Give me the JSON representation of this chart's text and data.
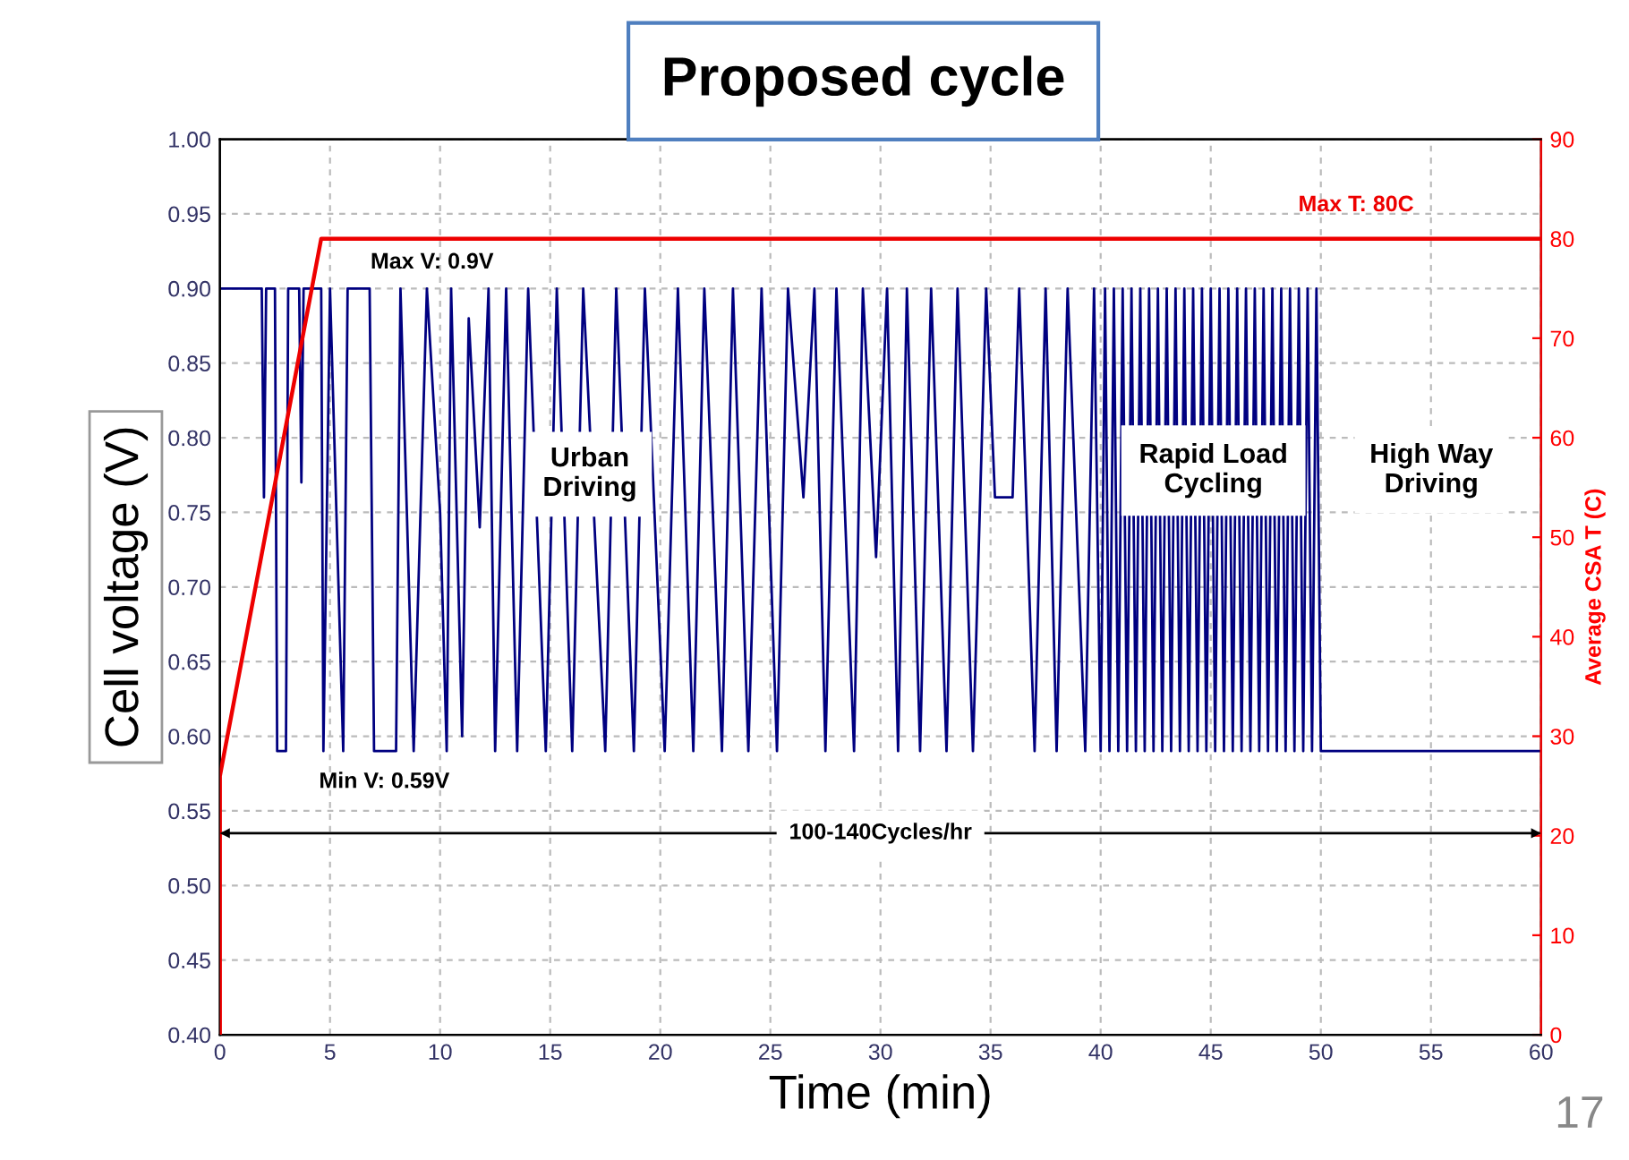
{
  "chart_data": {
    "type": "line",
    "title": "Proposed cycle",
    "xlabel": "Time (min)",
    "ylabel": "Cell voltage (V)",
    "y2label": "Average CSA T (C)",
    "xlim": [
      0,
      60
    ],
    "xticks": [
      0,
      5,
      10,
      15,
      20,
      25,
      30,
      35,
      40,
      45,
      50,
      55,
      60
    ],
    "ylim": [
      0.4,
      1.0
    ],
    "yticks": [
      {
        "value": 0.4,
        "label": "0.40"
      },
      {
        "value": 0.45,
        "label": "0.45"
      },
      {
        "value": 0.5,
        "label": "0.50"
      },
      {
        "value": 0.55,
        "label": "0.55"
      },
      {
        "value": 0.6,
        "label": "0.60"
      },
      {
        "value": 0.65,
        "label": "0.65"
      },
      {
        "value": 0.7,
        "label": "0.70"
      },
      {
        "value": 0.75,
        "label": "0.75"
      },
      {
        "value": 0.8,
        "label": "0.80"
      },
      {
        "value": 0.85,
        "label": "0.85"
      },
      {
        "value": 0.9,
        "label": "0.90"
      },
      {
        "value": 0.95,
        "label": "0.95"
      },
      {
        "value": 1.0,
        "label": "1.00"
      }
    ],
    "y2lim": [
      0,
      90
    ],
    "y2ticks": [
      0,
      10,
      20,
      30,
      40,
      50,
      60,
      70,
      80,
      90
    ],
    "grid": true,
    "ref_lines": [
      {
        "axis": "y",
        "value": 0.535,
        "label": "100-140Cycles/hr",
        "color": "#000000"
      }
    ],
    "marker": "none",
    "line_style": "solid",
    "series": [
      {
        "color": "#000080",
        "x": [
          0,
          1.9,
          2.0,
          2.1,
          2.5,
          2.6,
          3.0,
          3.1,
          3.6,
          3.7,
          3.8,
          4.6,
          4.7,
          5.0,
          5.6,
          5.8,
          6.8,
          7.0,
          8.0,
          8.2,
          8.8,
          9.4,
          10.0,
          10.3,
          10.5,
          11.0,
          11.3,
          11.8,
          12.2,
          12.5,
          13.0,
          13.5,
          14.0,
          14.8,
          15.3,
          16.0,
          16.5,
          17.5,
          18.0,
          18.8,
          19.3,
          20.2,
          20.8,
          21.5,
          22.0,
          22.8,
          23.3,
          24.0,
          24.6,
          25.3,
          25.8,
          26.5,
          27.0,
          27.5,
          28.0,
          28.8,
          29.2,
          29.8,
          30.3,
          30.8,
          31.2,
          31.8,
          32.3,
          33.0,
          33.5,
          34.2,
          34.8,
          35.2,
          36.0,
          36.3,
          37.0,
          37.5,
          38.0,
          38.5,
          39.3,
          39.7,
          40.0,
          40.2,
          40.4,
          40.6,
          40.8,
          41.0,
          41.2,
          41.4,
          41.6,
          41.8,
          42.0,
          42.2,
          42.4,
          42.6,
          42.8,
          43.0,
          43.2,
          43.4,
          43.6,
          43.8,
          44.0,
          44.2,
          44.4,
          44.6,
          44.8,
          45.0,
          45.2,
          45.4,
          45.6,
          45.8,
          46.0,
          46.2,
          46.4,
          46.6,
          46.8,
          47.0,
          47.2,
          47.4,
          47.6,
          47.8,
          48.0,
          48.2,
          48.4,
          48.6,
          48.8,
          49.0,
          49.2,
          49.4,
          49.6,
          49.8,
          50.0,
          60
        ],
        "values": [
          0.9,
          0.9,
          0.76,
          0.9,
          0.9,
          0.59,
          0.59,
          0.9,
          0.9,
          0.77,
          0.9,
          0.9,
          0.59,
          0.9,
          0.59,
          0.9,
          0.9,
          0.59,
          0.59,
          0.9,
          0.59,
          0.9,
          0.75,
          0.59,
          0.9,
          0.6,
          0.88,
          0.74,
          0.9,
          0.59,
          0.9,
          0.59,
          0.9,
          0.59,
          0.9,
          0.59,
          0.9,
          0.59,
          0.9,
          0.59,
          0.9,
          0.59,
          0.9,
          0.59,
          0.9,
          0.59,
          0.9,
          0.59,
          0.9,
          0.59,
          0.9,
          0.76,
          0.9,
          0.59,
          0.9,
          0.59,
          0.9,
          0.72,
          0.9,
          0.59,
          0.9,
          0.59,
          0.9,
          0.59,
          0.9,
          0.59,
          0.9,
          0.76,
          0.76,
          0.9,
          0.59,
          0.9,
          0.59,
          0.9,
          0.59,
          0.9,
          0.59,
          0.9,
          0.59,
          0.9,
          0.59,
          0.9,
          0.59,
          0.9,
          0.59,
          0.9,
          0.59,
          0.9,
          0.59,
          0.9,
          0.59,
          0.9,
          0.59,
          0.9,
          0.59,
          0.9,
          0.59,
          0.9,
          0.59,
          0.9,
          0.59,
          0.9,
          0.59,
          0.9,
          0.59,
          0.9,
          0.59,
          0.9,
          0.59,
          0.9,
          0.59,
          0.9,
          0.59,
          0.9,
          0.59,
          0.9,
          0.59,
          0.9,
          0.59,
          0.9,
          0.59,
          0.9,
          0.59,
          0.9,
          0.59,
          0.9,
          0.59,
          0.59
        ]
      },
      {
        "color": "#ee0000",
        "axis": "y2",
        "x": [
          0,
          0,
          4.6,
          60
        ],
        "values": [
          0,
          26,
          80,
          80
        ]
      }
    ],
    "annotations": [
      "Max V: 0.9V",
      "Min V: 0.59V",
      "Max T: 80C",
      "Urban\nDriving",
      "Rapid Load\nCycling",
      "High Way\nDriving",
      "17"
    ]
  }
}
